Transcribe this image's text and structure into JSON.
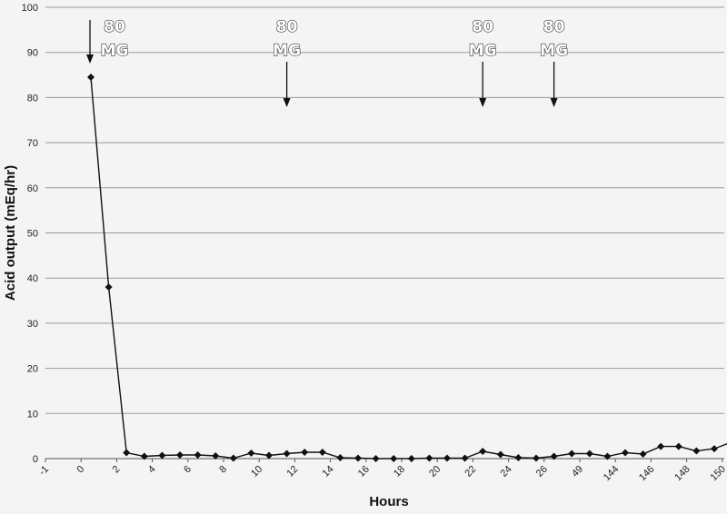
{
  "chart_data": {
    "type": "line",
    "xlabel": "Hours",
    "ylabel": "Acid output (mEq/hr)",
    "ylim": [
      0,
      100
    ],
    "yticks": [
      0,
      10,
      20,
      30,
      40,
      50,
      60,
      70,
      80,
      90,
      100
    ],
    "x_tick_labels": [
      "-1",
      "0",
      "2",
      "4",
      "6",
      "8",
      "10",
      "12",
      "14",
      "16",
      "18",
      "20",
      "22",
      "24",
      "26",
      "49",
      "144",
      "146",
      "148",
      "150"
    ],
    "grid": true,
    "series": [
      {
        "values": [
          84.5,
          38,
          1.3,
          0.5,
          0.7,
          0.8,
          0.8,
          0.6,
          0.1,
          1.2,
          0.7,
          1.1,
          1.4,
          1.4,
          0.2,
          0.1,
          0.0,
          0.0,
          0.0,
          0.1,
          0.1,
          0.1,
          1.6,
          0.9,
          0.2,
          0.1,
          0.5,
          1.1,
          1.1,
          0.5,
          1.3,
          1.0,
          2.7,
          2.7,
          1.7,
          2.2,
          3.7
        ]
      }
    ],
    "annotations": [
      {
        "line1": "80",
        "line2": "MG",
        "x_index": 0
      },
      {
        "line1": "80",
        "line2": "MG",
        "x_index": 11
      },
      {
        "line1": "80",
        "line2": "MG",
        "x_index": 22
      },
      {
        "line1": "80",
        "line2": "MG",
        "x_index": 26
      }
    ]
  }
}
